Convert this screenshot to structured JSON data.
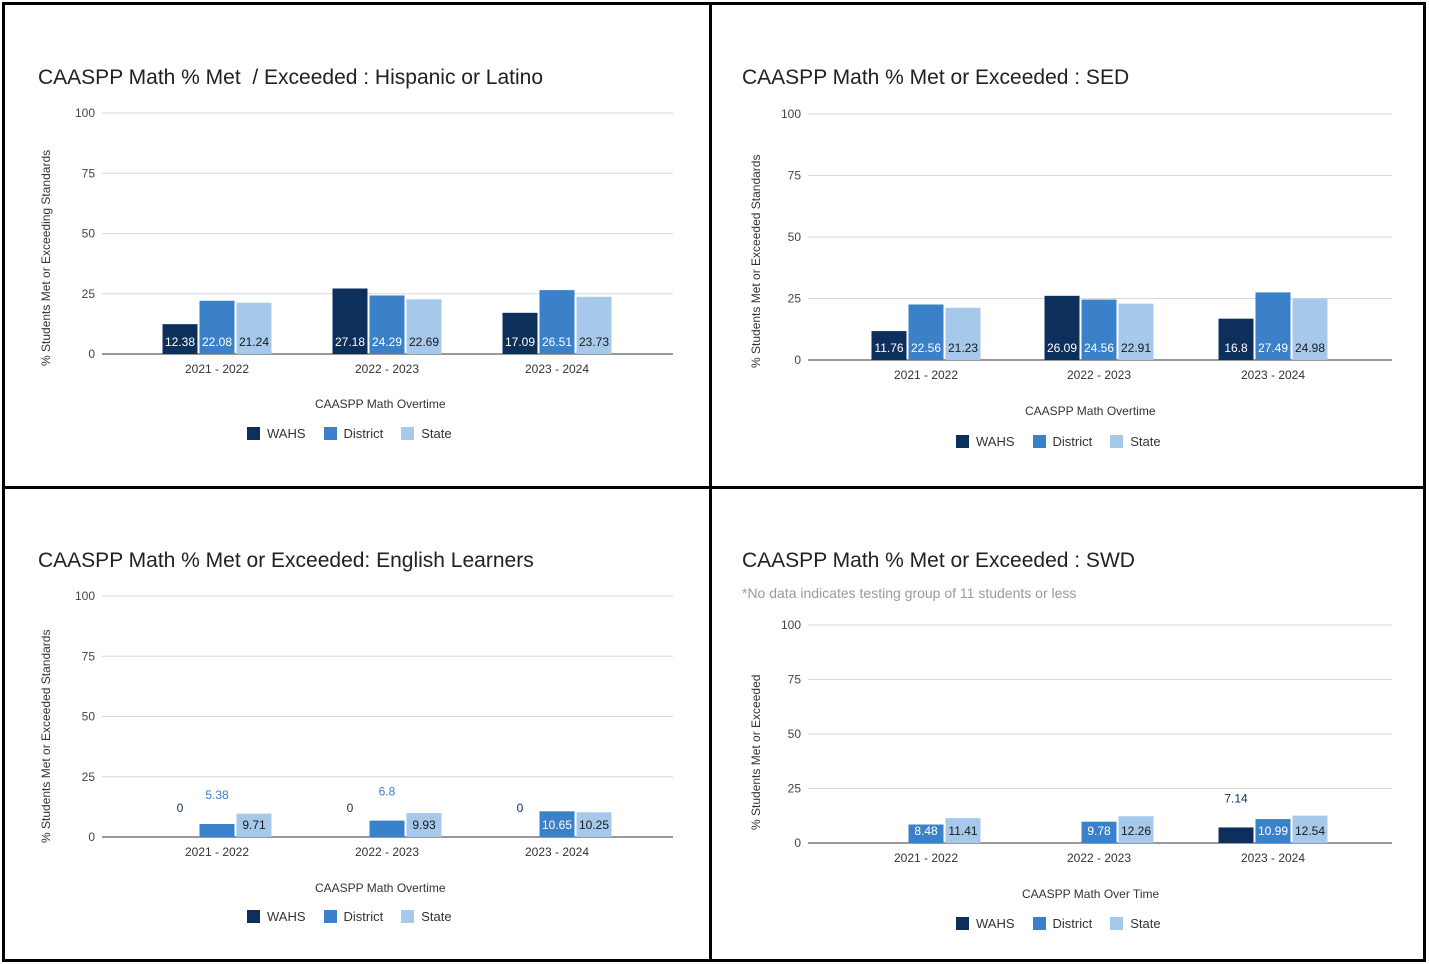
{
  "colors": {
    "WAHS": "#0d2f5c",
    "District": "#3a81c9",
    "State": "#a5c8eb"
  },
  "legend_labels": [
    "WAHS",
    "District",
    "State"
  ],
  "chart_data": [
    {
      "type": "bar",
      "title": "CAASPP Math % Met  / Exceeded : Hispanic or Latino",
      "subtitle": "",
      "xlabel": "CAASPP Math Overtime",
      "ylabel": "% Students Met or Exceeding Standards",
      "ylim": [
        0,
        100
      ],
      "yticks": [
        "0",
        "25",
        "50",
        "75",
        "100"
      ],
      "categories": [
        "2021 - 2022",
        "2022 - 2023",
        "2023 - 2024"
      ],
      "series": [
        {
          "name": "WAHS",
          "values": [
            12.38,
            27.18,
            17.09
          ],
          "labels": [
            "12.38",
            "27.18",
            "17.09"
          ]
        },
        {
          "name": "District",
          "values": [
            22.08,
            24.29,
            26.51
          ],
          "labels": [
            "22.08",
            "24.29",
            "26.51"
          ]
        },
        {
          "name": "State",
          "values": [
            21.24,
            22.69,
            23.73
          ],
          "labels": [
            "21.24",
            "22.69",
            "23.73"
          ]
        }
      ],
      "legend": "bottom",
      "grid": true
    },
    {
      "type": "bar",
      "title": "CAASPP Math % Met or Exceeded : SED",
      "subtitle": "",
      "xlabel": "CAASPP Math Overtime",
      "ylabel": "% Students Met or Exceeded Standards",
      "ylim": [
        0,
        100
      ],
      "yticks": [
        "0",
        "25",
        "50",
        "75",
        "100"
      ],
      "categories": [
        "2021 - 2022",
        "2022 - 2023",
        "2023 - 2024"
      ],
      "series": [
        {
          "name": "WAHS",
          "values": [
            11.76,
            26.09,
            16.8
          ],
          "labels": [
            "11.76",
            "26.09",
            "16.8"
          ]
        },
        {
          "name": "District",
          "values": [
            22.56,
            24.56,
            27.49
          ],
          "labels": [
            "22.56",
            "24.56",
            "27.49"
          ]
        },
        {
          "name": "State",
          "values": [
            21.23,
            22.91,
            24.98
          ],
          "labels": [
            "21.23",
            "22.91",
            "24.98"
          ]
        }
      ],
      "legend": "bottom",
      "grid": true
    },
    {
      "type": "bar",
      "title": "CAASPP Math % Met or Exceeded: English Learners",
      "subtitle": "",
      "xlabel": "CAASPP Math Overtime",
      "ylabel": "% Students Met or Exceeded Standards",
      "ylim": [
        0,
        100
      ],
      "yticks": [
        "0",
        "25",
        "50",
        "75",
        "100"
      ],
      "categories": [
        "2021 - 2022",
        "2022 - 2023",
        "2023 - 2024"
      ],
      "series": [
        {
          "name": "WAHS",
          "values": [
            0,
            0,
            0
          ],
          "labels": [
            "0",
            "0",
            "0"
          ]
        },
        {
          "name": "District",
          "values": [
            5.38,
            6.8,
            10.65
          ],
          "labels": [
            "5.38",
            "6.8",
            "10.65"
          ]
        },
        {
          "name": "State",
          "values": [
            9.71,
            9.93,
            10.25
          ],
          "labels": [
            "9.71",
            "9.93",
            "10.25"
          ]
        }
      ],
      "legend": "bottom",
      "grid": true
    },
    {
      "type": "bar",
      "title": "CAASPP Math % Met or Exceeded : SWD",
      "subtitle": "*No data indicates testing group of 11 students or less",
      "xlabel": "CAASPP Math Over Time",
      "ylabel": "% Students Met or Exceeded",
      "ylim": [
        0,
        100
      ],
      "yticks": [
        "0",
        "25",
        "50",
        "75",
        "100"
      ],
      "categories": [
        "2021 - 2022",
        "2022 - 2023",
        "2023 - 2024"
      ],
      "series": [
        {
          "name": "WAHS",
          "values": [
            null,
            null,
            7.14
          ],
          "labels": [
            "",
            "",
            "7.14"
          ]
        },
        {
          "name": "District",
          "values": [
            8.48,
            9.78,
            10.99
          ],
          "labels": [
            "8.48",
            "9.78",
            "10.99"
          ]
        },
        {
          "name": "State",
          "values": [
            11.41,
            12.26,
            12.54
          ],
          "labels": [
            "11.41",
            "12.26",
            "12.54"
          ]
        }
      ],
      "legend": "bottom",
      "grid": true
    }
  ]
}
